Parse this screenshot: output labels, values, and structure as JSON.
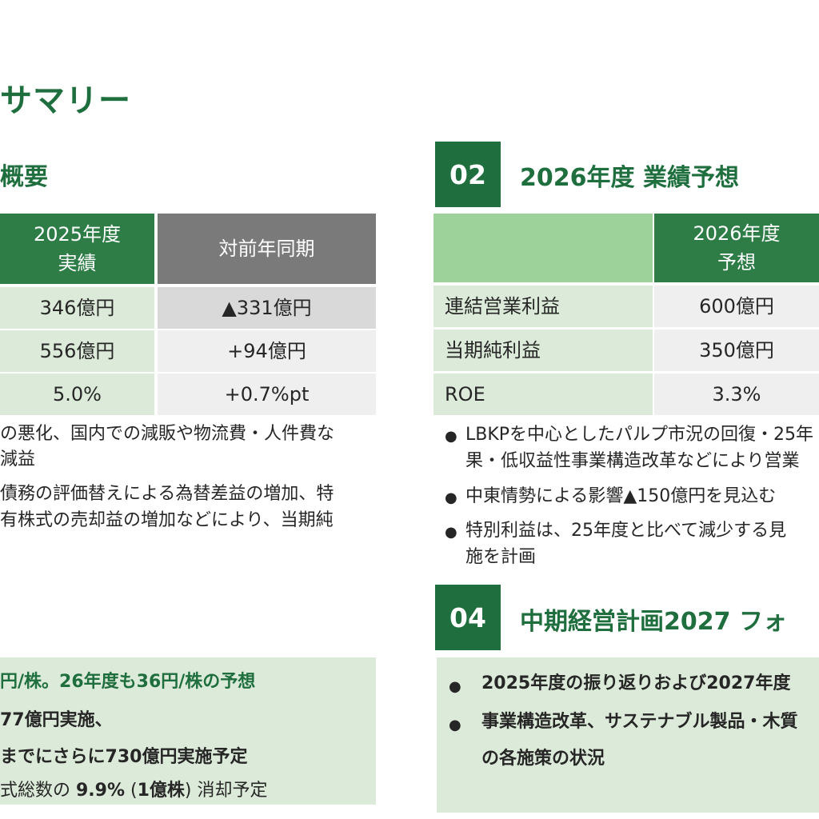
{
  "page": {
    "title": "サマリー"
  },
  "left": {
    "heading": "概要",
    "table": {
      "headers": [
        "2025年度",
        "実績",
        "対前年同期"
      ],
      "rows": [
        [
          "346億円",
          "▲331億円"
        ],
        [
          "556億円",
          "+94億円"
        ],
        [
          "5.0%",
          "+0.7%pt"
        ]
      ]
    },
    "notes": [
      "の悪化、国内での減販や物流費・人件費な",
      "減益",
      "債務の評価替えによる為替差益の増加、特",
      "有株式の売却益の増加などにより、当期純"
    ],
    "box": {
      "lines": [
        "円/株。26年度も36円/株の予想",
        "77億円実施、",
        "までにさらに730億円実施予定"
      ],
      "last_line": {
        "prefix": "式総数の ",
        "pct": "9.9%",
        "paren_open": " (",
        "shares": "1億株",
        "paren_close": ") ",
        "suffix": "消却予定"
      }
    }
  },
  "section02": {
    "badge": "02",
    "title": "2026年度 業績予想",
    "table": {
      "header_line1": "2026年度",
      "header_line2": "予想",
      "rows": [
        [
          "連結営業利益",
          "600億円"
        ],
        [
          "当期純利益",
          "350億円"
        ],
        [
          "ROE",
          "3.3%"
        ]
      ]
    },
    "bullets": [
      [
        "LBKPを中心としたパルプ市況の回復・25年",
        "果・低収益性事業構造改革などにより営業"
      ],
      [
        "中東情勢による影響▲150億円を見込む"
      ],
      [
        "特別利益は、25年度と比べて減少する見",
        "施を計画"
      ]
    ],
    "bullet_glyph": "●"
  },
  "section04": {
    "badge": "04",
    "title": "中期経営計画2027 フォ",
    "bullets": [
      [
        "2025年度の振り返りおよび2027年度"
      ],
      [
        "事業構造改革、サステナブル製品・木質",
        "の各施策の状況"
      ]
    ]
  },
  "colors": {
    "brand_green": "#1f6e3e",
    "header_green": "#2e7d47",
    "light_green": "#dcebd9",
    "header_light_green": "#9dd39a",
    "header_gray": "#7a7a7a"
  }
}
